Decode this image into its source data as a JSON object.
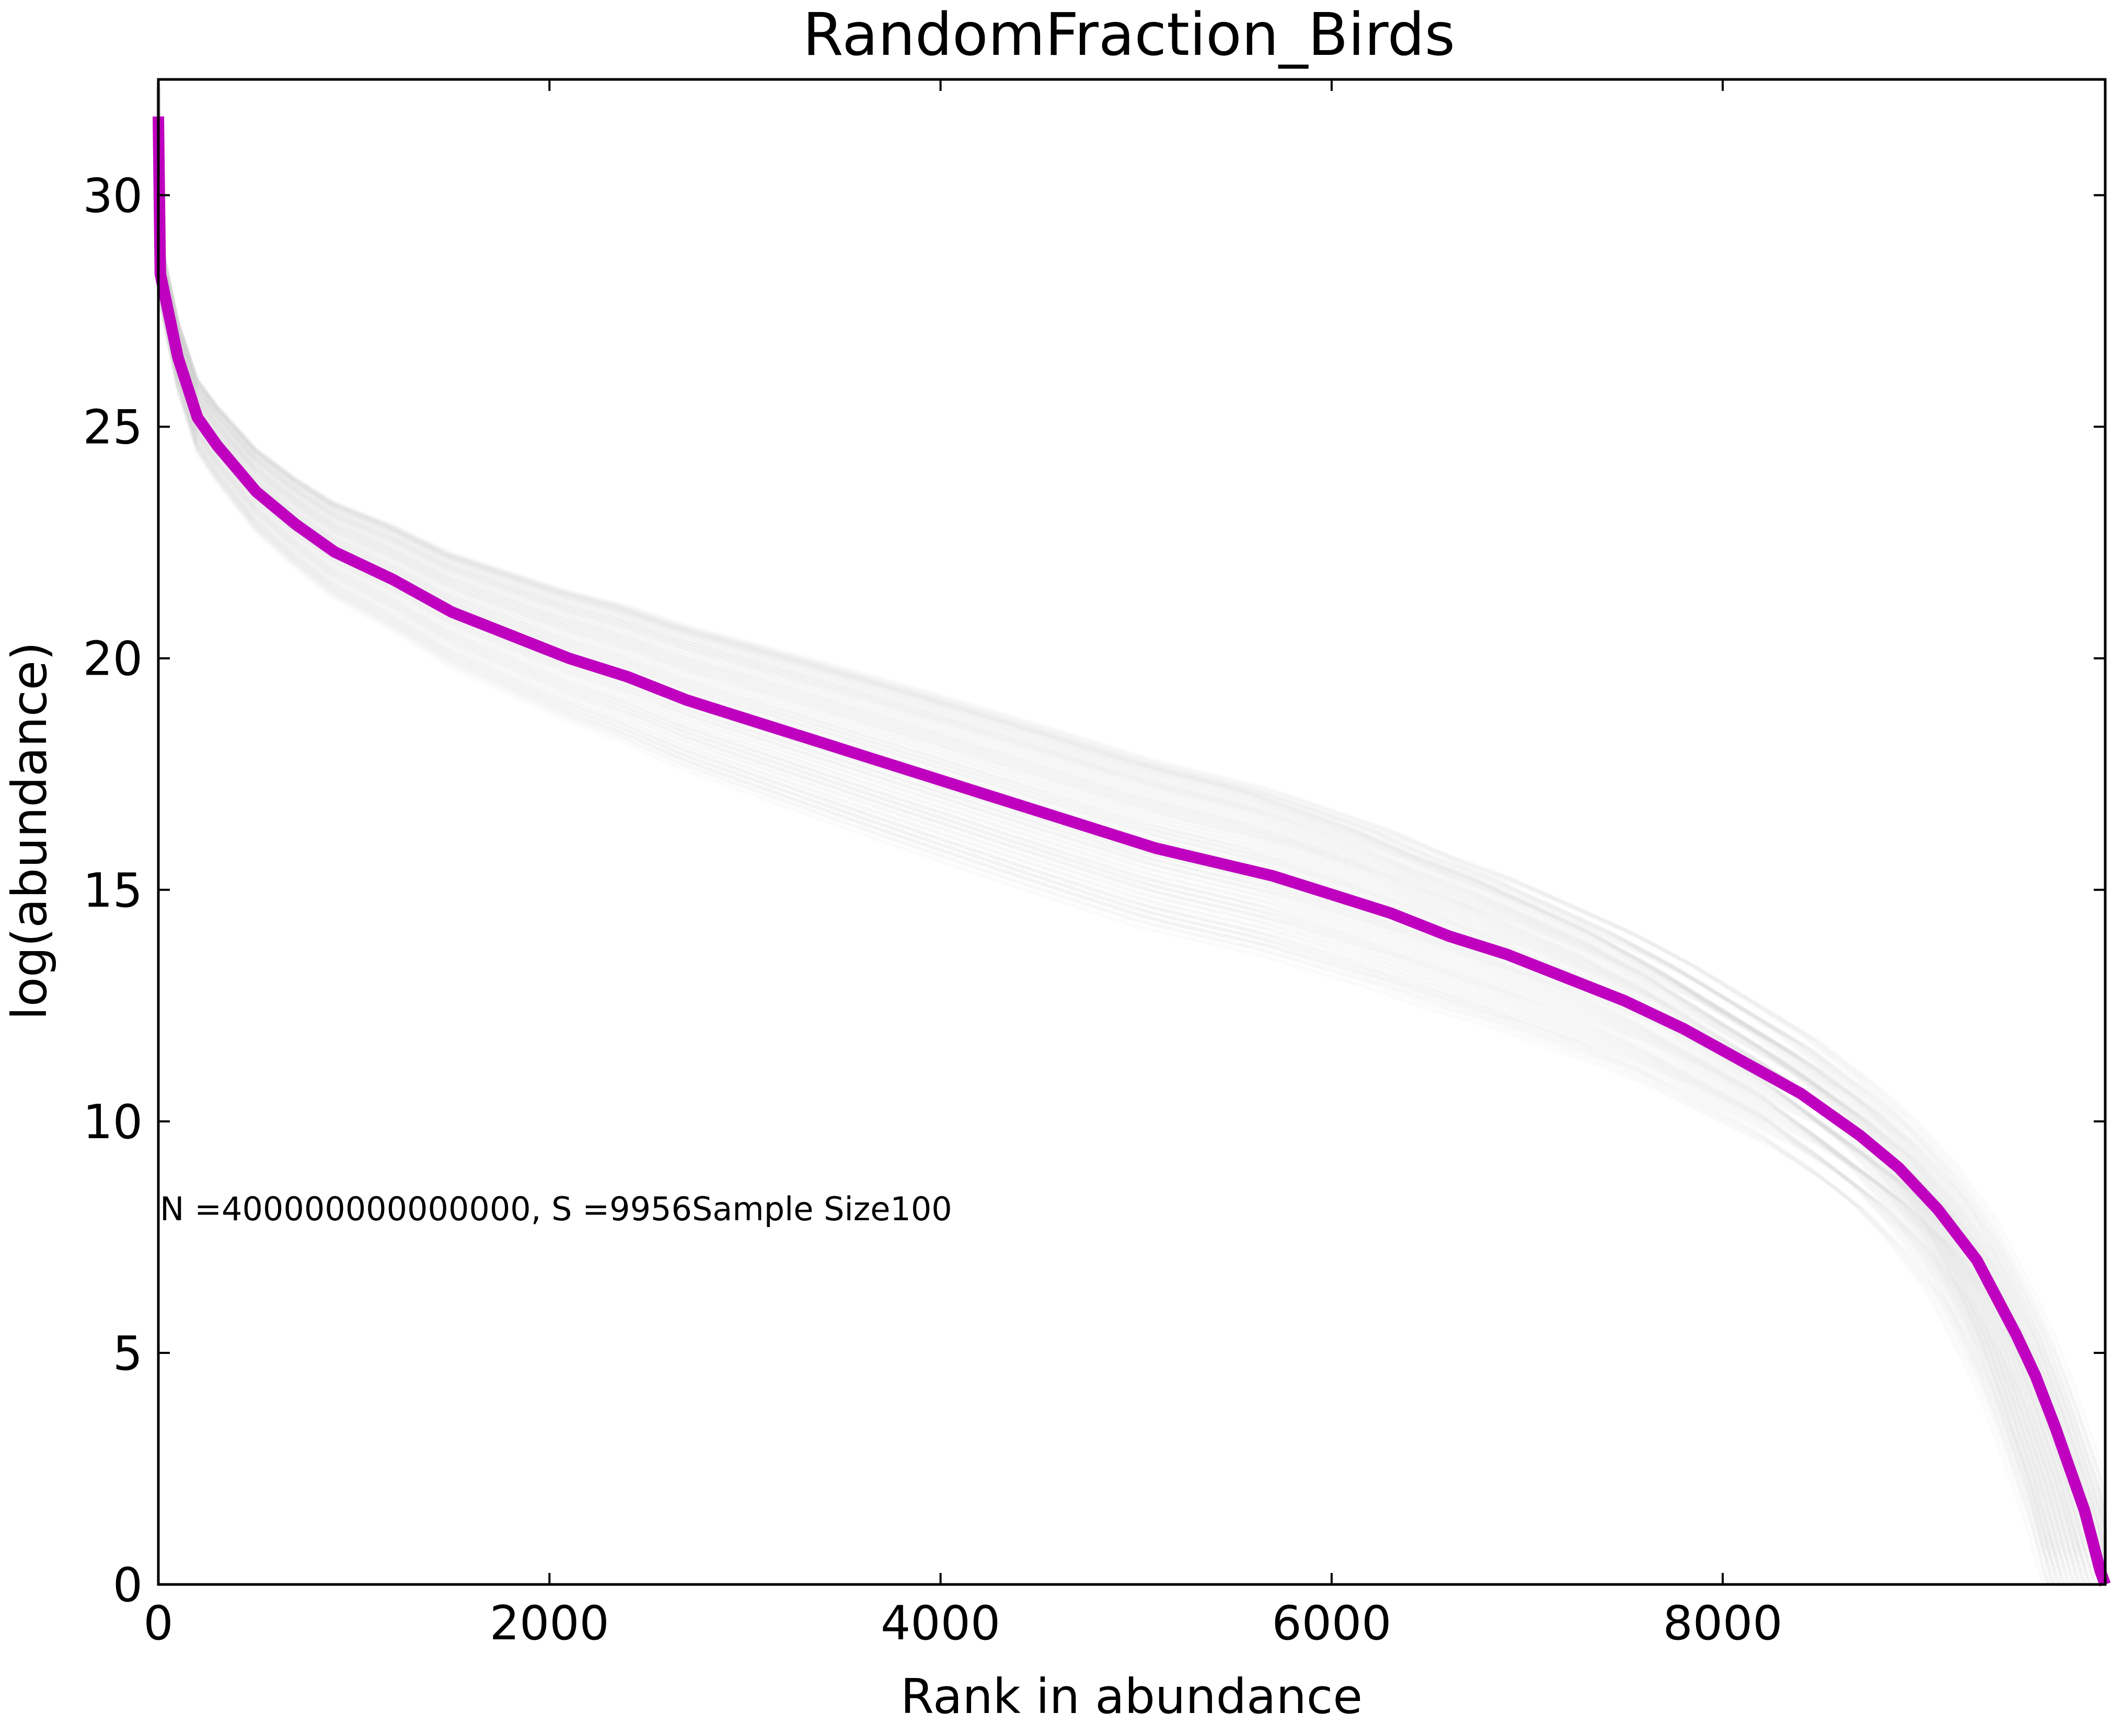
{
  "chart_data": {
    "type": "line",
    "title": "RandomFraction_Birds",
    "xlabel": "Rank in abundance",
    "ylabel": "log(abundance)",
    "xlim": [
      0,
      9956
    ],
    "ylim": [
      0,
      32.5
    ],
    "x_ticks": [
      0,
      2000,
      4000,
      6000,
      8000
    ],
    "x_tick_labels": [
      "0",
      "2000",
      "4000",
      "6000",
      "8000"
    ],
    "y_ticks": [
      0,
      5,
      10,
      15,
      20,
      25,
      30
    ],
    "y_tick_labels": [
      "0",
      "5",
      "10",
      "15",
      "20",
      "25",
      "30"
    ],
    "grid": false,
    "annotation": "N =400000000000000, S =9956Sample Size100",
    "series": [
      {
        "color": "#bf00bf",
        "x": [
          0,
          10,
          50,
          100,
          200,
          300,
          400,
          500,
          700,
          900,
          1200,
          1500,
          1800,
          2100,
          2400,
          2700,
          3000,
          3300,
          3600,
          3900,
          4200,
          4500,
          4800,
          5100,
          5400,
          5700,
          6000,
          6300,
          6600,
          6900,
          7200,
          7500,
          7800,
          8100,
          8400,
          8700,
          8900,
          9100,
          9300,
          9500,
          9600,
          9700,
          9800,
          9850,
          9900,
          9930,
          9956
        ],
        "y": [
          31.7,
          28.3,
          27.5,
          26.5,
          25.2,
          24.6,
          24.1,
          23.6,
          22.9,
          22.3,
          21.7,
          21.0,
          20.5,
          20.0,
          19.6,
          19.1,
          18.7,
          18.3,
          17.9,
          17.5,
          17.1,
          16.7,
          16.3,
          15.9,
          15.6,
          15.3,
          14.9,
          14.5,
          14.0,
          13.6,
          13.1,
          12.6,
          12.0,
          11.3,
          10.6,
          9.7,
          9.0,
          8.1,
          7.0,
          5.4,
          4.5,
          3.4,
          2.2,
          1.6,
          0.8,
          0.3,
          0.0
        ]
      }
    ],
    "samples": {
      "color": "#c8c8c8",
      "count": 100
    }
  }
}
